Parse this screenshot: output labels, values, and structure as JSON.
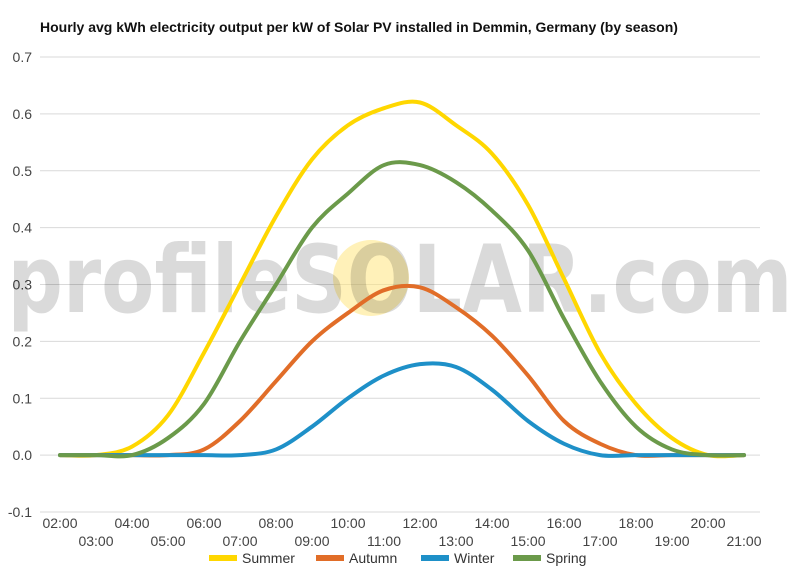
{
  "chart_data": {
    "type": "line",
    "title": "Hourly avg kWh electricity output per kW of Solar PV installed in Demmin, Germany (by season)",
    "xlabel": "",
    "ylabel": "",
    "ylim": [
      -0.1,
      0.7
    ],
    "yticks": [
      "-0.1",
      "0.0",
      "0.1",
      "0.2",
      "0.3",
      "0.4",
      "0.5",
      "0.6",
      "0.7"
    ],
    "grid": true,
    "legend_position": "bottom",
    "x": [
      "02:00",
      "03:00",
      "04:00",
      "05:00",
      "06:00",
      "07:00",
      "08:00",
      "09:00",
      "10:00",
      "11:00",
      "12:00",
      "13:00",
      "14:00",
      "15:00",
      "16:00",
      "17:00",
      "18:00",
      "19:00",
      "20:00",
      "21:00"
    ],
    "series": [
      {
        "name": "Summer",
        "color": "#ffd700",
        "values": [
          0.0,
          0.0,
          0.015,
          0.07,
          0.18,
          0.3,
          0.42,
          0.52,
          0.58,
          0.61,
          0.62,
          0.58,
          0.53,
          0.44,
          0.31,
          0.18,
          0.09,
          0.03,
          0.0,
          0.0
        ]
      },
      {
        "name": "Autumn",
        "color": "#e16d28",
        "values": [
          0.0,
          0.0,
          0.0,
          0.0,
          0.01,
          0.06,
          0.13,
          0.2,
          0.25,
          0.29,
          0.295,
          0.26,
          0.21,
          0.14,
          0.06,
          0.02,
          0.0,
          0.0,
          0.0,
          0.0
        ]
      },
      {
        "name": "Winter",
        "color": "#1e90c8",
        "values": [
          0.0,
          0.0,
          0.0,
          0.0,
          0.0,
          0.0,
          0.01,
          0.05,
          0.1,
          0.14,
          0.16,
          0.155,
          0.115,
          0.06,
          0.02,
          0.0,
          0.0,
          0.0,
          0.0,
          0.0
        ]
      },
      {
        "name": "Spring",
        "color": "#6b9a4a",
        "values": [
          0.0,
          0.0,
          0.0,
          0.03,
          0.09,
          0.2,
          0.3,
          0.4,
          0.46,
          0.51,
          0.51,
          0.48,
          0.43,
          0.36,
          0.24,
          0.13,
          0.05,
          0.01,
          0.0,
          0.0
        ]
      }
    ]
  },
  "watermark": {
    "text": "profileSOLAR.com"
  }
}
